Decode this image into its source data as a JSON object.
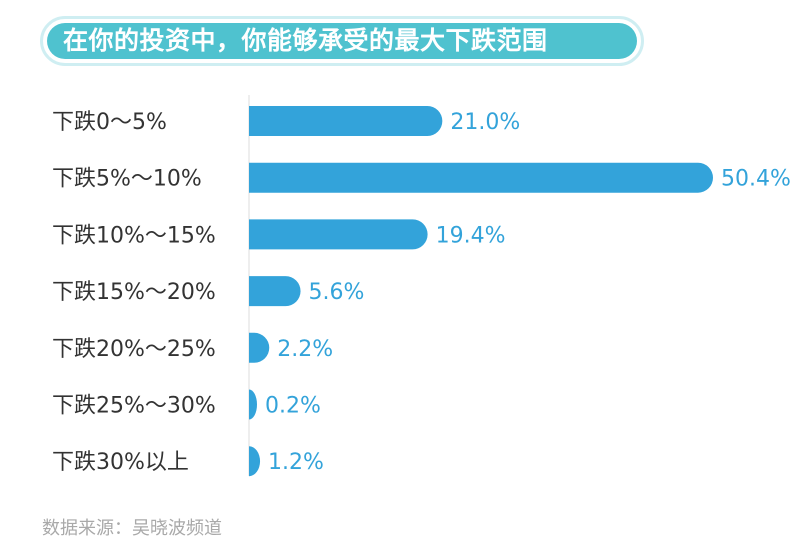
{
  "title": "在你的投资中，你能够承受的最大下跌范围",
  "source": "数据来源：吴晓波频道",
  "colors": {
    "bar": "#33a3da",
    "value_label": "#33a3da",
    "category_label": "#333333",
    "title_bg": "#4fc2cf",
    "title_border": "#cfeef2",
    "source_text": "#a9a9a9"
  },
  "chart_data": {
    "type": "bar",
    "orientation": "horizontal",
    "categories": [
      "下跌0～5%",
      "下跌5%～10%",
      "下跌10%～15%",
      "下跌15%～20%",
      "下跌20%～25%",
      "下跌25%～30%",
      "下跌30%以上"
    ],
    "values": [
      21.0,
      50.4,
      19.4,
      5.6,
      2.2,
      0.2,
      1.2
    ],
    "value_labels": [
      "21.0%",
      "50.4%",
      "19.4%",
      "5.6%",
      "2.2%",
      "0.2%",
      "1.2%"
    ],
    "unit": "%",
    "xlim": [
      0,
      60
    ],
    "grid": false,
    "legend": "none"
  }
}
